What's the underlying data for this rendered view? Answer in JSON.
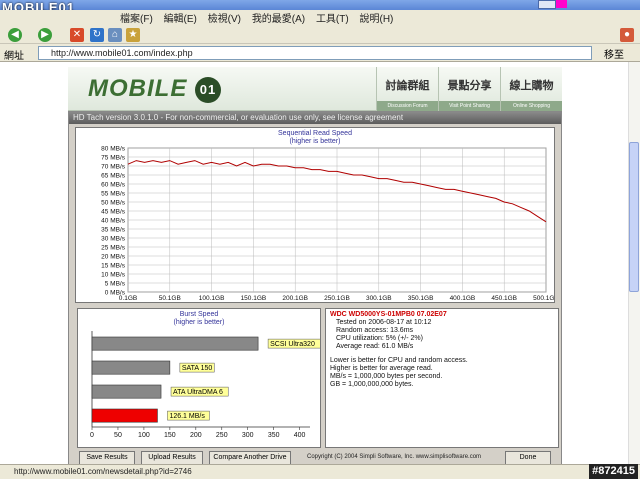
{
  "browser": {
    "title_logo": "MOBILE01",
    "menu": [
      "檔案(F)",
      "編輯(E)",
      "檢視(V)",
      "我的最愛(A)",
      "工具(T)",
      "說明(H)"
    ],
    "address_label": "網址",
    "url": "http://www.mobile01.com/index.php",
    "go_label": "移至",
    "status_text": "http://www.mobile01.com/newsdetail.php?id=2746",
    "watermark": "#872415"
  },
  "site": {
    "logo": "MOBILE",
    "nav": [
      {
        "zh": "討論群組",
        "en": "Discussion Forum"
      },
      {
        "zh": "景點分享",
        "en": "Visit Point Sharing"
      },
      {
        "zh": "線上購物",
        "en": "Online Shopping"
      }
    ]
  },
  "hdtach": {
    "title": "HD Tach version 3.0.1.0 - For non-commercial, or evaluation use only, see license agreement",
    "seq_title": "Sequential Read Speed",
    "seq_subtitle": "(higher is better)",
    "burst_title": "Burst Speed",
    "burst_subtitle": "(higher is better)",
    "model": "WDC WD5000YS-01MPB0 07.02E07",
    "info_lines": [
      "Tested on 2006-08-17 at 10:12",
      "Random access: 13.6ms",
      "CPU utilization: 5% (+/- 2%)",
      "Average read: 61.0 MB/s"
    ],
    "notes": [
      "Lower is better for CPU and random access.",
      "Higher is better for average read.",
      "MB/s = 1,000,000 bytes per second.",
      "GB = 1,000,000,000 bytes."
    ],
    "buttons": {
      "save": "Save Results",
      "upload": "Upload Results",
      "compare": "Compare Another Drive",
      "done": "Done"
    },
    "copyright": "Copyright (C) 2004 Simpli Software, Inc. www.simplisoftware.com"
  },
  "chart_data": [
    {
      "type": "line",
      "title": "Sequential Read Speed",
      "subtitle": "(higher is better)",
      "y_ticks": [
        "0 MB/s",
        "5 MB/s",
        "10 MB/s",
        "15 MB/s",
        "20 MB/s",
        "25 MB/s",
        "30 MB/s",
        "35 MB/s",
        "40 MB/s",
        "45 MB/s",
        "50 MB/s",
        "55 MB/s",
        "60 MB/s",
        "65 MB/s",
        "70 MB/s",
        "75 MB/s",
        "80 MB/s"
      ],
      "x_ticks": [
        "0.1GB",
        "50.1GB",
        "100.1GB",
        "150.1GB",
        "200.1GB",
        "250.1GB",
        "300.1GB",
        "350.1GB",
        "400.1GB",
        "450.1GB",
        "500.1GB"
      ],
      "xlim": [
        0.1,
        500.1
      ],
      "ylim": [
        0,
        80
      ],
      "color": "#b00000",
      "series": [
        {
          "x": [
            0.1,
            10,
            20,
            30,
            40,
            50,
            60,
            70,
            80,
            90,
            100,
            110,
            120,
            130,
            140,
            150,
            160,
            170,
            180,
            190,
            200,
            210,
            220,
            230,
            240,
            250,
            260,
            270,
            280,
            290,
            300,
            310,
            320,
            330,
            340,
            350,
            360,
            370,
            380,
            390,
            400,
            410,
            420,
            430,
            440,
            450,
            460,
            470,
            480,
            490,
            500.1
          ],
          "y": [
            71,
            73,
            72,
            73,
            72,
            73,
            71,
            72,
            73,
            71,
            72,
            71,
            72,
            70,
            72,
            70,
            71,
            71,
            70,
            70,
            69,
            69,
            68,
            68,
            67,
            67,
            66,
            65,
            65,
            64,
            63,
            63,
            62,
            61,
            61,
            60,
            59,
            58,
            57,
            57,
            56,
            55,
            54,
            53,
            52,
            50,
            49,
            47,
            45,
            42,
            39
          ]
        }
      ]
    },
    {
      "type": "bar",
      "title": "Burst Speed",
      "subtitle": "(higher is better)",
      "orientation": "horizontal",
      "categories": [
        "SCSI Ultra320",
        "SATA 150",
        "ATA UltraDMA 6",
        "126.1 MB/s"
      ],
      "values": [
        320,
        150,
        133,
        126.1
      ],
      "colors": [
        "#888888",
        "#888888",
        "#888888",
        "#ee0000"
      ],
      "x_ticks": [
        "0",
        "50",
        "100",
        "150",
        "200",
        "250",
        "300",
        "350",
        "400"
      ],
      "xlim": [
        0,
        420
      ]
    }
  ]
}
